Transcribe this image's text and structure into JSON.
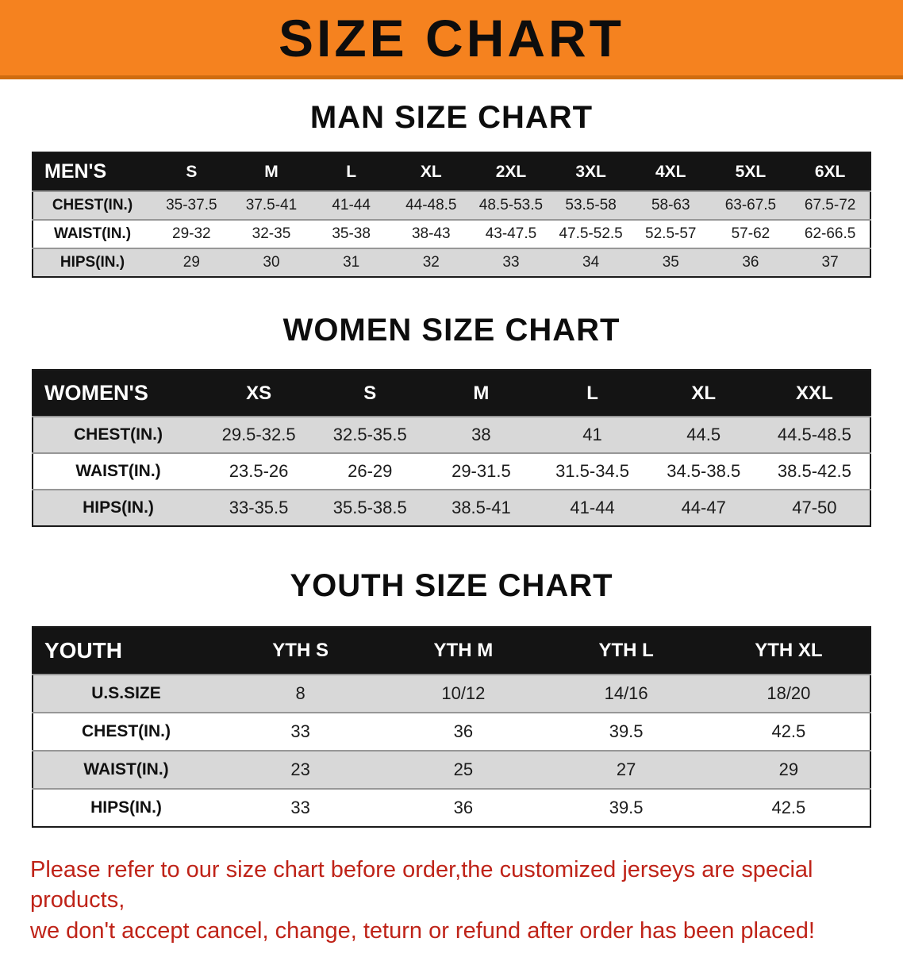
{
  "banner": {
    "title": "SIZE CHART"
  },
  "sections": [
    {
      "title": "MAN SIZE CHART",
      "header": [
        "MEN'S",
        "S",
        "M",
        "L",
        "XL",
        "2XL",
        "3XL",
        "4XL",
        "5XL",
        "6XL"
      ],
      "rows": [
        {
          "label": "CHEST(IN.)",
          "values": [
            "35-37.5",
            "37.5-41",
            "41-44",
            "44-48.5",
            "48.5-53.5",
            "53.5-58",
            "58-63",
            "63-67.5",
            "67.5-72"
          ]
        },
        {
          "label": "WAIST(IN.)",
          "values": [
            "29-32",
            "32-35",
            "35-38",
            "38-43",
            "43-47.5",
            "47.5-52.5",
            "52.5-57",
            "57-62",
            "62-66.5"
          ]
        },
        {
          "label": "HIPS(IN.)",
          "values": [
            "29",
            "30",
            "31",
            "32",
            "33",
            "34",
            "35",
            "36",
            "37"
          ]
        }
      ]
    },
    {
      "title": "WOMEN SIZE CHART",
      "header": [
        "WOMEN'S",
        "XS",
        "S",
        "M",
        "L",
        "XL",
        "XXL"
      ],
      "rows": [
        {
          "label": "CHEST(IN.)",
          "values": [
            "29.5-32.5",
            "32.5-35.5",
            "38",
            "41",
            "44.5",
            "44.5-48.5"
          ]
        },
        {
          "label": "WAIST(IN.)",
          "values": [
            "23.5-26",
            "26-29",
            "29-31.5",
            "31.5-34.5",
            "34.5-38.5",
            "38.5-42.5"
          ]
        },
        {
          "label": "HIPS(IN.)",
          "values": [
            "33-35.5",
            "35.5-38.5",
            "38.5-41",
            "41-44",
            "44-47",
            "47-50"
          ]
        }
      ]
    },
    {
      "title": "YOUTH SIZE CHART",
      "header": [
        "YOUTH",
        "YTH S",
        "YTH M",
        "YTH L",
        "YTH XL"
      ],
      "rows": [
        {
          "label": "U.S.SIZE",
          "values": [
            "8",
            "10/12",
            "14/16",
            "18/20"
          ]
        },
        {
          "label": "CHEST(IN.)",
          "values": [
            "33",
            "36",
            "39.5",
            "42.5"
          ]
        },
        {
          "label": "WAIST(IN.)",
          "values": [
            "23",
            "25",
            "27",
            "29"
          ]
        },
        {
          "label": "HIPS(IN.)",
          "values": [
            "33",
            "36",
            "39.5",
            "42.5"
          ]
        }
      ]
    }
  ],
  "footer": {
    "line1": "Please refer to our size chart before order,the customized jerseys are special products,",
    "line2": "we don't accept cancel, change, teturn or refund after order has been placed!"
  },
  "colors": {
    "banner_bg": "#f5821f",
    "table_header_bg": "#141414",
    "row_stripe": "#d8d8d8",
    "notice_text": "#bf2318"
  }
}
